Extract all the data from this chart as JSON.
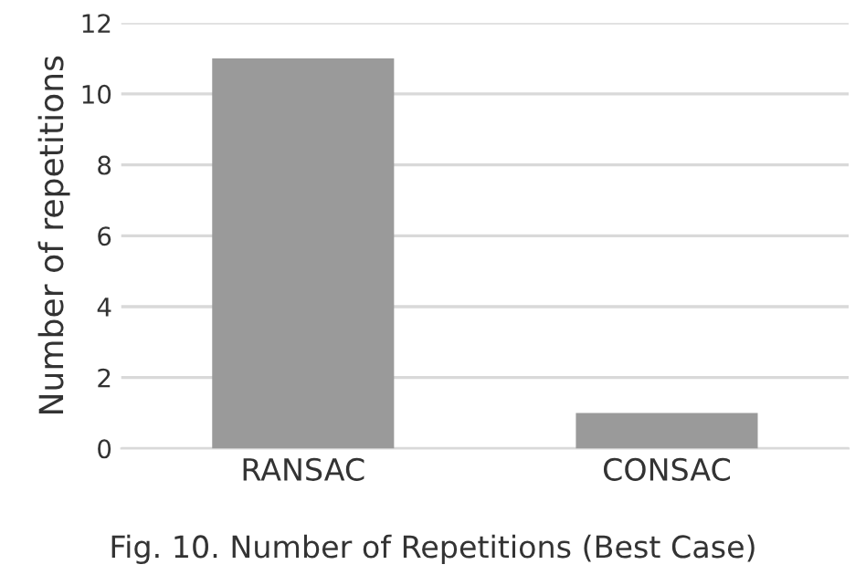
{
  "chart_data": {
    "type": "bar",
    "ylabel": "Number of repetitions",
    "categories": [
      "RANSAC",
      "CONSAC"
    ],
    "values": [
      11,
      1
    ],
    "color": "#9a9a9a",
    "ylim": [
      0,
      12
    ],
    "yticks": [
      0,
      2,
      4,
      6,
      8,
      10,
      12
    ],
    "grid": "y",
    "annotations": [
      "Fig. 10. Number of Repetitions (Best Case)"
    ]
  }
}
